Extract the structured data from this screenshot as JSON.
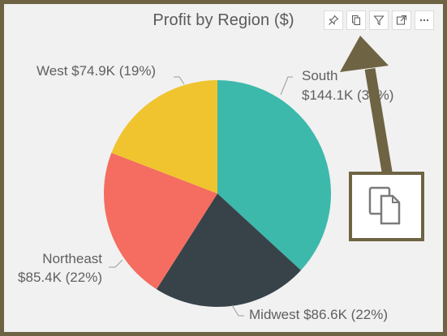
{
  "toolbar": {
    "icons": [
      "pin-icon",
      "copy-icon",
      "filter-icon",
      "focus-mode-icon",
      "more-options-icon"
    ]
  },
  "chart_data": {
    "type": "pie",
    "title": "Profit by Region ($)",
    "slices": [
      {
        "name": "South",
        "value": 144.1,
        "label_line1": "South",
        "label_line2": "$144.1K (37%)",
        "color": "#3db9ac"
      },
      {
        "name": "Midwest",
        "value": 86.6,
        "label_line1": "Midwest $86.6K (22%)",
        "label_line2": "",
        "color": "#374349"
      },
      {
        "name": "Northeast",
        "value": 85.4,
        "label_line1": "Northeast",
        "label_line2": "$85.4K (22%)",
        "color": "#f46d60"
      },
      {
        "name": "West",
        "value": 74.9,
        "label_line1": "West $74.9K (19%)",
        "label_line2": "",
        "color": "#f0c42e"
      }
    ],
    "start_angle_deg": 0,
    "direction": "clockwise"
  },
  "annotation": {
    "arrow_color": "#6e6343",
    "callout_icon": "copy-icon"
  }
}
